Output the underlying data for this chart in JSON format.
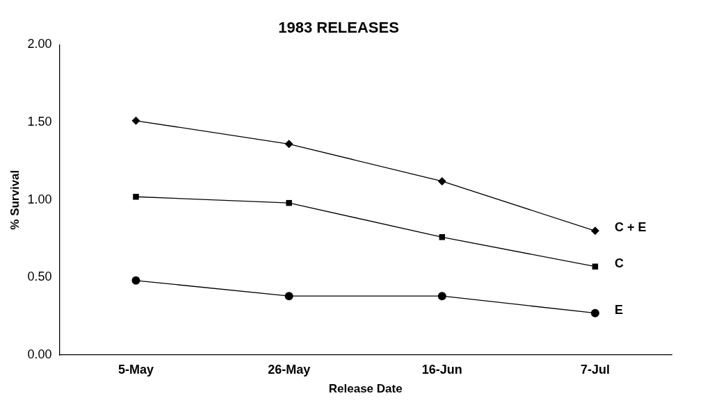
{
  "chart_data": {
    "type": "line",
    "title": "1983 RELEASES",
    "xlabel": "Release Date",
    "ylabel": "% Survival",
    "categories": [
      "5-May",
      "26-May",
      "16-Jun",
      "7-Jul"
    ],
    "series": [
      {
        "name": "C + E",
        "color": "#000000",
        "marker": "diamond",
        "values": [
          1.51,
          1.36,
          1.12,
          0.8
        ]
      },
      {
        "name": "C",
        "color": "#000000",
        "marker": "square",
        "values": [
          1.02,
          0.98,
          0.76,
          0.57
        ]
      },
      {
        "name": "E",
        "color": "#000000",
        "marker": "circle",
        "values": [
          0.48,
          0.38,
          0.38,
          0.27
        ]
      }
    ],
    "ylim": [
      0,
      2
    ],
    "yticks": [
      {
        "value": 0,
        "label": "0.00"
      },
      {
        "value": 0.5,
        "label": "0.50"
      },
      {
        "value": 1,
        "label": "1.00"
      },
      {
        "value": 1.5,
        "label": "1.50"
      },
      {
        "value": 2,
        "label": "2.00"
      }
    ],
    "grid": false,
    "legend": false,
    "line_style": "solid"
  }
}
